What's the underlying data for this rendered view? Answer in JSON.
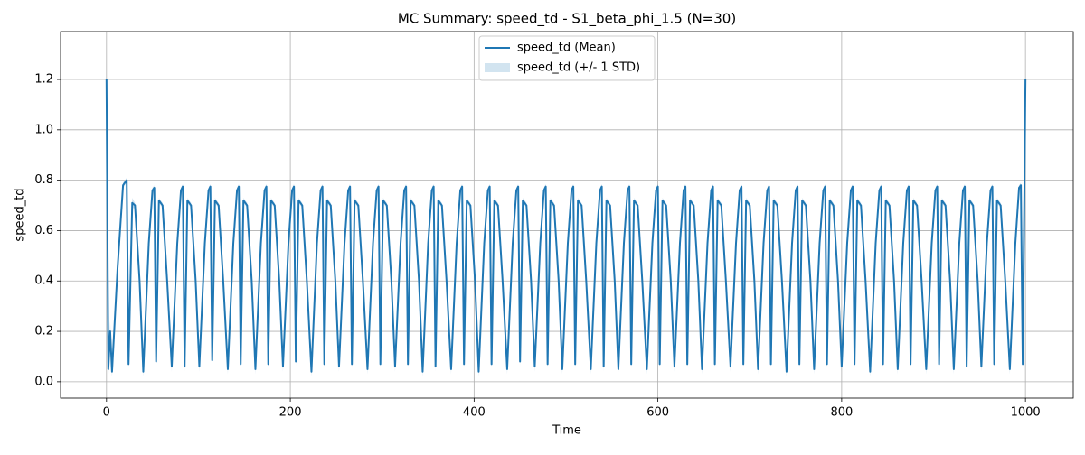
{
  "chart_data": {
    "type": "line",
    "title": "MC Summary: speed_td - S1_beta_phi_1.5 (N=30)",
    "xlabel": "Time",
    "ylabel": "speed_td",
    "xlim": [
      -50,
      1052
    ],
    "ylim": [
      -0.065,
      1.39
    ],
    "xticks": [
      0,
      200,
      400,
      600,
      800,
      1000
    ],
    "yticks": [
      {
        "value": 0,
        "label": "0.0"
      },
      0.2,
      0.4,
      0.6,
      0.8,
      {
        "value": 1,
        "label": "1.0"
      },
      1.2
    ],
    "grid": true,
    "legend": "upper center",
    "x": [
      0,
      2,
      4,
      6,
      12,
      18,
      22,
      24,
      28,
      31,
      36,
      40,
      46,
      50,
      52,
      54,
      57,
      61,
      66,
      71,
      77,
      81,
      83,
      85,
      88,
      92,
      97,
      101,
      107,
      111,
      113,
      115,
      118,
      122,
      127,
      132,
      138,
      142,
      144,
      146,
      149,
      153,
      158,
      162,
      168,
      172,
      174,
      176,
      179,
      183,
      188,
      192,
      198,
      202,
      204,
      206,
      209,
      213,
      218,
      223,
      229,
      233,
      235,
      237,
      240,
      244,
      249,
      253,
      259,
      263,
      265,
      267,
      270,
      274,
      279,
      284,
      290,
      294,
      296,
      298,
      301,
      305,
      310,
      314,
      320,
      324,
      326,
      328,
      331,
      335,
      340,
      344,
      350,
      354,
      356,
      358,
      361,
      365,
      370,
      375,
      381,
      385,
      387,
      389,
      392,
      396,
      401,
      405,
      411,
      415,
      417,
      419,
      422,
      426,
      431,
      436,
      442,
      446,
      448,
      450,
      453,
      457,
      462,
      466,
      472,
      476,
      478,
      480,
      483,
      487,
      492,
      496,
      502,
      506,
      508,
      510,
      513,
      517,
      522,
      527,
      533,
      537,
      539,
      541,
      544,
      548,
      553,
      557,
      563,
      567,
      569,
      571,
      574,
      578,
      583,
      588,
      594,
      598,
      600,
      602,
      605,
      609,
      614,
      618,
      624,
      628,
      630,
      632,
      635,
      639,
      644,
      648,
      654,
      658,
      660,
      662,
      665,
      669,
      674,
      679,
      685,
      689,
      691,
      693,
      696,
      700,
      705,
      709,
      715,
      719,
      721,
      723,
      726,
      730,
      735,
      740,
      746,
      750,
      752,
      754,
      757,
      761,
      766,
      770,
      776,
      780,
      782,
      784,
      787,
      791,
      796,
      800,
      806,
      810,
      812,
      814,
      817,
      821,
      826,
      831,
      837,
      841,
      843,
      845,
      848,
      852,
      857,
      861,
      867,
      871,
      873,
      875,
      878,
      882,
      887,
      892,
      898,
      902,
      904,
      906,
      909,
      913,
      918,
      922,
      928,
      932,
      934,
      936,
      939,
      943,
      948,
      952,
      958,
      962,
      964,
      966,
      969,
      973,
      978,
      983,
      989,
      993,
      995,
      997,
      1000
    ],
    "series": [
      {
        "name": "speed_td (Mean)",
        "color": "#1f77b4",
        "values": [
          1.2,
          0.05,
          0.2,
          0.04,
          0.45,
          0.78,
          0.8,
          0.07,
          0.71,
          0.7,
          0.4,
          0.04,
          0.55,
          0.76,
          0.77,
          0.08,
          0.72,
          0.7,
          0.4,
          0.06,
          0.55,
          0.76,
          0.775,
          0.06,
          0.72,
          0.7,
          0.4,
          0.06,
          0.55,
          0.76,
          0.775,
          0.085,
          0.72,
          0.7,
          0.4,
          0.05,
          0.55,
          0.76,
          0.775,
          0.07,
          0.72,
          0.7,
          0.4,
          0.05,
          0.55,
          0.76,
          0.775,
          0.07,
          0.72,
          0.7,
          0.4,
          0.06,
          0.55,
          0.76,
          0.775,
          0.08,
          0.72,
          0.7,
          0.4,
          0.04,
          0.55,
          0.76,
          0.775,
          0.07,
          0.72,
          0.7,
          0.4,
          0.06,
          0.55,
          0.76,
          0.775,
          0.07,
          0.72,
          0.7,
          0.4,
          0.05,
          0.55,
          0.76,
          0.775,
          0.07,
          0.72,
          0.7,
          0.4,
          0.06,
          0.55,
          0.76,
          0.775,
          0.07,
          0.72,
          0.7,
          0.4,
          0.04,
          0.55,
          0.76,
          0.775,
          0.06,
          0.72,
          0.7,
          0.4,
          0.05,
          0.55,
          0.76,
          0.775,
          0.07,
          0.72,
          0.7,
          0.4,
          0.04,
          0.55,
          0.76,
          0.775,
          0.07,
          0.72,
          0.7,
          0.4,
          0.05,
          0.55,
          0.76,
          0.775,
          0.08,
          0.72,
          0.7,
          0.4,
          0.06,
          0.55,
          0.76,
          0.775,
          0.07,
          0.72,
          0.7,
          0.4,
          0.05,
          0.55,
          0.76,
          0.775,
          0.07,
          0.72,
          0.7,
          0.4,
          0.05,
          0.55,
          0.76,
          0.775,
          0.06,
          0.72,
          0.7,
          0.4,
          0.05,
          0.55,
          0.76,
          0.775,
          0.07,
          0.72,
          0.7,
          0.4,
          0.05,
          0.55,
          0.76,
          0.775,
          0.07,
          0.72,
          0.7,
          0.4,
          0.06,
          0.55,
          0.76,
          0.775,
          0.07,
          0.72,
          0.7,
          0.4,
          0.05,
          0.55,
          0.76,
          0.775,
          0.07,
          0.72,
          0.7,
          0.4,
          0.06,
          0.55,
          0.76,
          0.775,
          0.07,
          0.72,
          0.7,
          0.4,
          0.05,
          0.55,
          0.76,
          0.775,
          0.07,
          0.72,
          0.7,
          0.4,
          0.04,
          0.55,
          0.76,
          0.775,
          0.07,
          0.72,
          0.7,
          0.4,
          0.05,
          0.55,
          0.76,
          0.775,
          0.07,
          0.72,
          0.7,
          0.4,
          0.06,
          0.55,
          0.76,
          0.775,
          0.07,
          0.72,
          0.7,
          0.4,
          0.04,
          0.55,
          0.76,
          0.775,
          0.07,
          0.72,
          0.7,
          0.4,
          0.05,
          0.55,
          0.76,
          0.775,
          0.07,
          0.72,
          0.7,
          0.4,
          0.05,
          0.55,
          0.76,
          0.775,
          0.07,
          0.72,
          0.7,
          0.4,
          0.05,
          0.55,
          0.76,
          0.775,
          0.06,
          0.72,
          0.7,
          0.4,
          0.06,
          0.55,
          0.76,
          0.775,
          0.07,
          0.72,
          0.7,
          0.4,
          0.05,
          0.55,
          0.77,
          0.78,
          0.07,
          1.2
        ]
      },
      {
        "name": "speed_td (+/- 1 STD)",
        "color": "#1f77b4",
        "values": [
          0.01,
          0.03,
          0.04,
          0.02,
          0.02,
          0.01,
          0.01,
          0.02,
          0.02,
          0.01,
          0.01,
          0.02,
          0.01,
          0.01,
          0.01,
          0.02,
          0.01,
          0.01,
          0.01,
          0.02,
          0.01,
          0.01,
          0.01,
          0.02,
          0.01,
          0.01,
          0.01,
          0.02,
          0.01,
          0.01,
          0.01,
          0.02,
          0.01,
          0.01,
          0.01,
          0.02,
          0.01,
          0.01,
          0.01,
          0.02,
          0.01,
          0.01,
          0.01,
          0.02,
          0.01,
          0.01,
          0.01,
          0.02,
          0.01,
          0.01,
          0.01,
          0.02,
          0.01,
          0.01,
          0.01,
          0.02,
          0.01,
          0.01,
          0.01,
          0.02,
          0.01,
          0.01,
          0.01,
          0.02,
          0.01,
          0.01,
          0.01,
          0.02,
          0.01,
          0.01,
          0.01,
          0.02,
          0.01,
          0.01,
          0.01,
          0.02,
          0.01,
          0.01,
          0.01,
          0.02,
          0.01,
          0.01,
          0.01,
          0.02,
          0.01,
          0.01,
          0.01,
          0.02,
          0.01,
          0.01,
          0.01,
          0.02,
          0.01,
          0.01,
          0.01,
          0.02,
          0.01,
          0.01,
          0.01,
          0.02,
          0.01,
          0.01,
          0.01,
          0.02,
          0.01,
          0.01,
          0.01,
          0.02,
          0.01,
          0.01,
          0.01,
          0.02,
          0.01,
          0.01,
          0.01,
          0.02,
          0.01,
          0.01,
          0.01,
          0.02,
          0.01,
          0.01,
          0.01,
          0.02,
          0.01,
          0.01,
          0.01,
          0.02,
          0.01,
          0.01,
          0.01,
          0.02,
          0.01,
          0.01,
          0.01,
          0.02,
          0.01,
          0.01,
          0.01,
          0.02,
          0.01,
          0.01,
          0.01,
          0.02,
          0.01,
          0.01,
          0.01,
          0.02,
          0.01,
          0.01,
          0.01,
          0.02,
          0.01,
          0.01,
          0.01,
          0.02,
          0.01,
          0.01,
          0.01,
          0.02,
          0.01,
          0.01,
          0.01,
          0.02,
          0.01,
          0.01,
          0.01,
          0.02,
          0.01,
          0.01,
          0.01,
          0.02,
          0.01,
          0.01,
          0.01,
          0.02,
          0.01,
          0.01,
          0.01,
          0.02,
          0.01,
          0.01,
          0.01,
          0.02,
          0.01,
          0.01,
          0.01,
          0.02,
          0.01,
          0.01,
          0.01,
          0.02,
          0.01,
          0.01,
          0.01,
          0.02,
          0.01,
          0.01,
          0.01,
          0.02,
          0.01,
          0.01,
          0.01,
          0.02,
          0.01,
          0.01,
          0.01,
          0.02,
          0.01,
          0.01,
          0.01,
          0.02,
          0.01,
          0.01,
          0.01,
          0.02,
          0.01,
          0.01,
          0.01,
          0.02,
          0.01,
          0.01,
          0.01,
          0.02,
          0.01,
          0.01,
          0.01,
          0.02,
          0.01,
          0.01,
          0.01,
          0.02,
          0.01,
          0.01,
          0.01,
          0.02,
          0.01,
          0.01,
          0.01,
          0.02,
          0.01,
          0.01,
          0.01,
          0.02,
          0.01,
          0.01,
          0.01,
          0.02,
          0.01,
          0.01,
          0.01,
          0.02,
          0.01,
          0.01,
          0.01,
          0.02,
          0.01,
          0.01,
          0.01,
          0.02,
          0.01,
          0.01,
          0.01,
          0.02,
          0.01
        ]
      }
    ]
  }
}
